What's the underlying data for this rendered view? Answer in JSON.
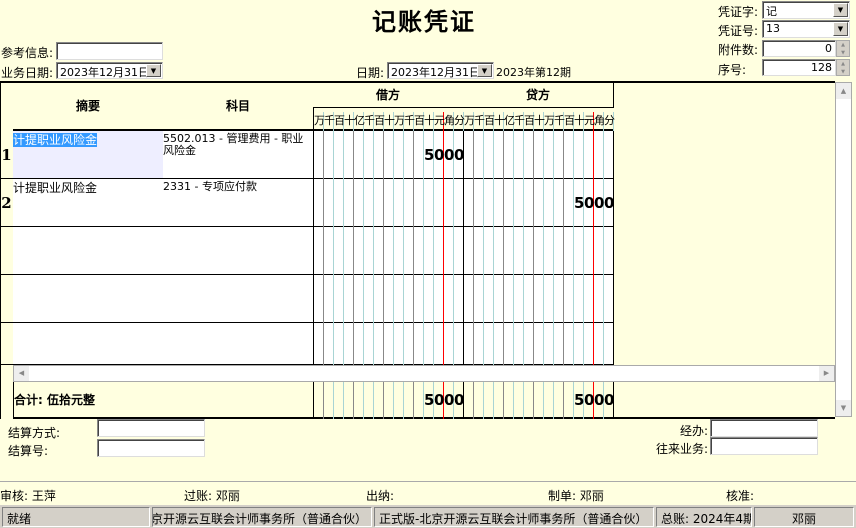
{
  "title": "记账凭证",
  "header": {
    "ref_label": "参考信息:",
    "ref_value": "",
    "bizdate_label": "业务日期:",
    "bizdate_value": "2023年12月31日",
    "date_label": "日期:",
    "date_value": "2023年12月31日",
    "period": "2023年第12期",
    "voucher_type_label": "凭证字:",
    "voucher_type_value": "记",
    "voucher_no_label": "凭证号:",
    "voucher_no_value": "13",
    "attach_label": "附件数:",
    "attach_value": "0",
    "seq_label": "序号:",
    "seq_value": "128"
  },
  "table": {
    "col_summary": "摘要",
    "col_account": "科目",
    "col_debit": "借方",
    "col_credit": "贷方",
    "digit_units": [
      "万",
      "千",
      "百",
      "十",
      "亿",
      "千",
      "百",
      "十",
      "万",
      "千",
      "百",
      "十",
      "元",
      "角",
      "分"
    ],
    "rows": [
      {
        "no": "1",
        "summary": "计提职业风险金",
        "account": "5502.013 - 管理费用 - 职业风险金",
        "debit": "5000",
        "credit": ""
      },
      {
        "no": "2",
        "summary": "计提职业风险金",
        "account": "2331 - 专项应付款",
        "debit": "",
        "credit": "5000"
      },
      {
        "no": "",
        "summary": "",
        "account": "",
        "debit": "",
        "credit": ""
      },
      {
        "no": "",
        "summary": "",
        "account": "",
        "debit": "",
        "credit": ""
      },
      {
        "no": "",
        "summary": "",
        "account": "",
        "debit": "",
        "credit": ""
      }
    ],
    "total_label": "合计: 伍拾元整",
    "total_debit": "5000",
    "total_credit": "5000"
  },
  "footer": {
    "settle_method_label": "结算方式:",
    "settle_method_value": "",
    "settle_no_label": "结算号:",
    "settle_no_value": "",
    "handler_label": "经办:",
    "handler_value": "",
    "business_label": "往来业务:",
    "business_value": "",
    "auditor": "审核: 王萍",
    "poster": "过账: 邓丽",
    "cashier": "出纳:",
    "maker": "制单: 邓丽",
    "approver": "核准:"
  },
  "statusbar": {
    "state": "就绪",
    "company": "北京开源云互联会计师事务所（普通合伙）",
    "edition": "正式版-北京开源云互联会计师事务所（普通合伙）",
    "ledger": "总账: 2024年4期",
    "user": "邓丽"
  },
  "colors": {
    "background": "#ffffe0",
    "selection": "#3399ff",
    "red_line": "#ff0000",
    "grid_line": "#a8d4d4"
  }
}
